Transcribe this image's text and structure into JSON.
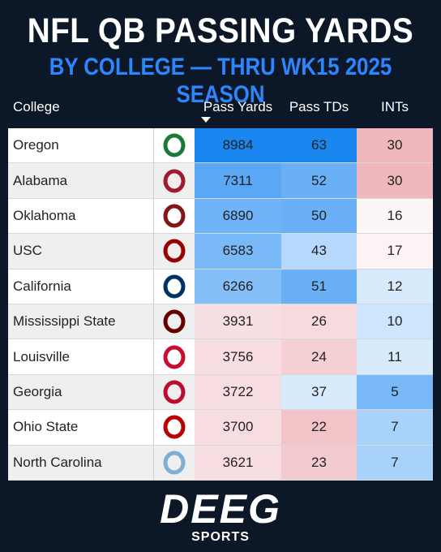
{
  "header": {
    "title": "NFL QB PASSING YARDS",
    "subtitle": "BY COLLEGE — THRU WK15 2025 SEASON"
  },
  "table": {
    "columns": [
      "College",
      "Pass Yards",
      "Pass TDs",
      "INTs"
    ],
    "sorted_column": 1,
    "rows": [
      [
        "Oregon",
        8984,
        63,
        30
      ],
      [
        "Alabama",
        7311,
        52,
        30
      ],
      [
        "Oklahoma",
        6890,
        50,
        16
      ],
      [
        "USC",
        6583,
        43,
        17
      ],
      [
        "California",
        6266,
        51,
        12
      ],
      [
        "Mississippi State",
        3931,
        26,
        10
      ],
      [
        "Louisville",
        3756,
        24,
        11
      ],
      [
        "Georgia",
        3722,
        37,
        5
      ],
      [
        "Ohio State",
        3700,
        22,
        7
      ],
      [
        "North Carolina",
        3621,
        23,
        7
      ]
    ],
    "cell_colors": [
      [
        "#1a86f0",
        "#1a86f0",
        "#f0b8bc"
      ],
      [
        "#5aa8f5",
        "#6ab0f7",
        "#f0b8bc"
      ],
      [
        "#6fb3f8",
        "#6ab0f7",
        "#fdf6f6"
      ],
      [
        "#7ab9f8",
        "#b5d8fc",
        "#fdf3f4"
      ],
      [
        "#84bff9",
        "#6ab0f7",
        "#d8ebfd"
      ],
      [
        "#f8e0e2",
        "#f6dadd",
        "#cde5fd"
      ],
      [
        "#f8dde0",
        "#f4cfd3",
        "#d8ebfd"
      ],
      [
        "#f8dde0",
        "#d8ebfd",
        "#7ab9f8"
      ],
      [
        "#f8dde0",
        "#f2c4c8",
        "#a9d2fb"
      ],
      [
        "#f8dde0",
        "#f3cacf",
        "#a9d2fb"
      ]
    ]
  },
  "footer": {
    "brand": "DEEG",
    "tagline": "SPORTS"
  }
}
